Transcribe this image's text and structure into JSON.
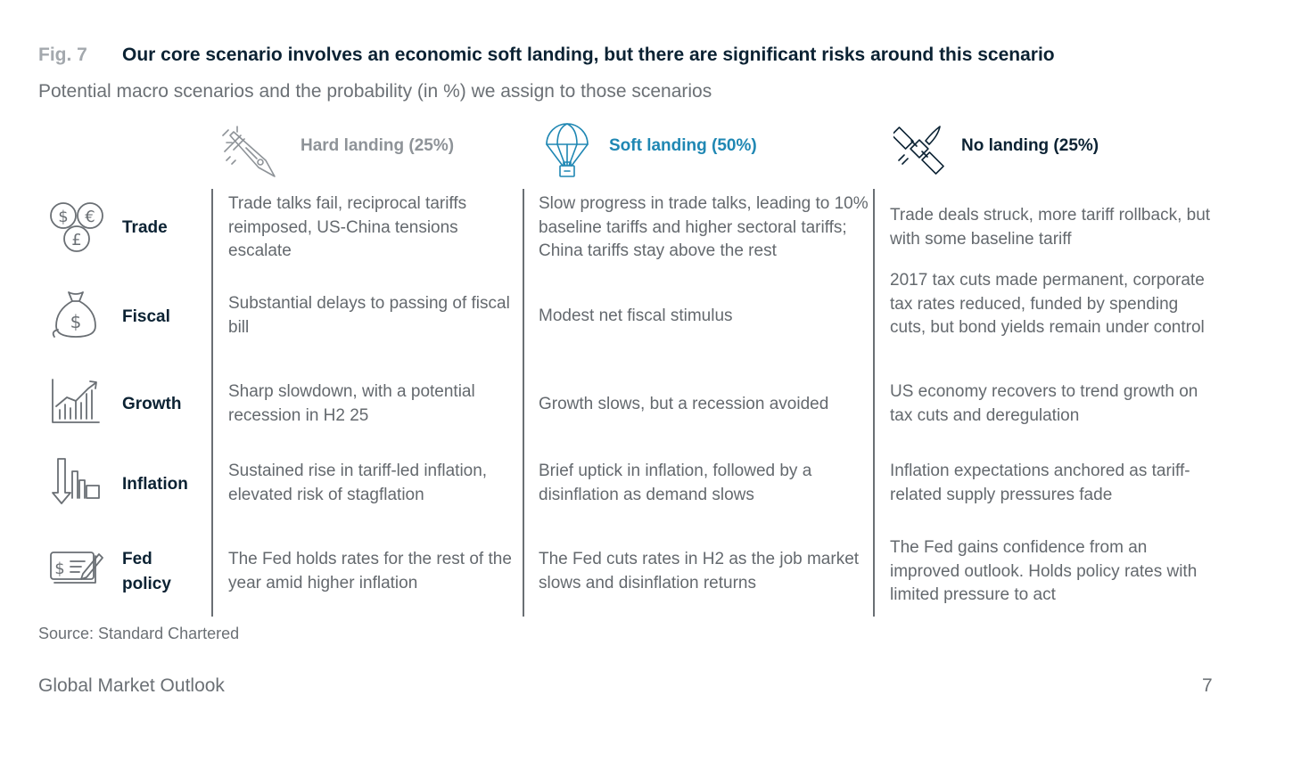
{
  "figure": {
    "label": "Fig. 7",
    "title": "Our core scenario involves an economic soft landing, but there are significant risks around this scenario",
    "subtitle": "Potential macro scenarios and the probability (in %) we assign to those scenarios"
  },
  "columns": [
    {
      "label": "Hard landing (25%)",
      "icon": "rocket-icon",
      "color": "#8e9398"
    },
    {
      "label": "Soft landing (50%)",
      "icon": "parachute-icon",
      "color": "#1f87b3"
    },
    {
      "label": "No landing (25%)",
      "icon": "satellite-icon",
      "color": "#0b2233"
    }
  ],
  "rows": [
    {
      "label": "Trade",
      "icon": "currency-coins-icon",
      "cells": [
        "Trade talks fail, reciprocal tariffs reimposed, US-China tensions escalate",
        "Slow progress in trade talks, leading to 10% baseline tariffs and higher sectoral tariffs; China tariffs stay above the rest",
        "Trade deals struck, more tariff rollback, but with some baseline tariff"
      ]
    },
    {
      "label": "Fiscal",
      "icon": "money-bag-icon",
      "cells": [
        "Substantial delays to passing of fiscal bill",
        "Modest net fiscal stimulus",
        "2017 tax cuts made permanent, corporate tax rates reduced, funded by spending cuts, but bond yields remain under control"
      ]
    },
    {
      "label": "Growth",
      "icon": "growth-chart-icon",
      "cells": [
        "Sharp slowdown, with a potential recession in H2 25",
        "Growth slows, but a recession avoided",
        "US economy recovers to trend growth on tax cuts and deregulation"
      ]
    },
    {
      "label": "Inflation",
      "icon": "inflation-arrow-icon",
      "cells": [
        "Sustained rise in tariff-led inflation, elevated risk of stagflation",
        "Brief uptick in inflation, followed by a disinflation as demand slows",
        "Inflation expectations anchored as tariff-related supply pressures fade"
      ]
    },
    {
      "label": "Fed policy",
      "icon": "policy-cheque-icon",
      "cells": [
        "The Fed holds rates for the rest of the year amid higher inflation",
        "The Fed cuts rates in H2 as the job market slows and disinflation returns",
        "The Fed gains confidence from an improved outlook. Holds policy rates with limited pressure to act"
      ]
    }
  ],
  "source": "Source: Standard Chartered",
  "footer": {
    "publication": "Global Market Outlook",
    "page_number": "7"
  }
}
